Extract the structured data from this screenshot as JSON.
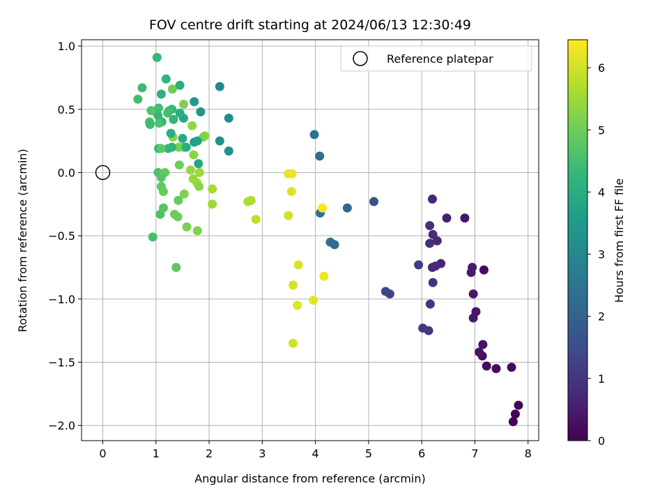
{
  "chart_data": {
    "type": "scatter",
    "title": "FOV centre drift starting at 2024/06/13 12:30:49",
    "xlabel": "Angular distance from reference (arcmin)",
    "ylabel": "Rotation from reference (arcmin)",
    "xlim": [
      -0.4,
      8.2
    ],
    "ylim": [
      -2.12,
      1.05
    ],
    "xticks": [
      0,
      1,
      2,
      3,
      4,
      5,
      6,
      7,
      8
    ],
    "yticks": [
      -2.0,
      -1.5,
      -1.0,
      -0.5,
      0.0,
      0.5,
      1.0
    ],
    "xtick_labels": [
      "0",
      "1",
      "2",
      "3",
      "4",
      "5",
      "6",
      "7",
      "8"
    ],
    "ytick_labels": [
      "−2.0",
      "−1.5",
      "−1.0",
      "−0.5",
      "0.0",
      "0.5",
      "1.0"
    ],
    "grid": true,
    "colormap": "viridis",
    "colorbar": {
      "label": "Hours from first FF file",
      "range": [
        0,
        6.45
      ],
      "ticks": [
        0,
        1,
        2,
        3,
        4,
        5,
        6
      ],
      "tick_labels": [
        "0",
        "1",
        "2",
        "3",
        "4",
        "5",
        "6"
      ]
    },
    "legend": {
      "position": "top-right",
      "label": "Reference platepar",
      "marker": "open-circle"
    },
    "reference_point": {
      "x": 0,
      "y": 0
    },
    "points": [
      {
        "x": 7.82,
        "y": -1.84,
        "c": 0.05
      },
      {
        "x": 7.76,
        "y": -1.91,
        "c": 0.08
      },
      {
        "x": 7.72,
        "y": -1.97,
        "c": 0.1
      },
      {
        "x": 7.69,
        "y": -1.54,
        "c": 0.15
      },
      {
        "x": 7.4,
        "y": -1.55,
        "c": 0.2
      },
      {
        "x": 7.22,
        "y": -1.53,
        "c": 0.25
      },
      {
        "x": 7.14,
        "y": -1.45,
        "c": 0.3
      },
      {
        "x": 7.15,
        "y": -1.36,
        "c": 0.33
      },
      {
        "x": 7.08,
        "y": -1.42,
        "c": 0.36
      },
      {
        "x": 7.02,
        "y": -1.1,
        "c": 0.4
      },
      {
        "x": 6.97,
        "y": -1.15,
        "c": 0.43
      },
      {
        "x": 6.97,
        "y": -0.96,
        "c": 0.46
      },
      {
        "x": 6.95,
        "y": -0.75,
        "c": 0.5
      },
      {
        "x": 6.93,
        "y": -0.79,
        "c": 0.52
      },
      {
        "x": 7.17,
        "y": -0.77,
        "c": 0.2
      },
      {
        "x": 6.81,
        "y": -0.36,
        "c": 0.4
      },
      {
        "x": 6.47,
        "y": -0.36,
        "c": 0.6
      },
      {
        "x": 6.36,
        "y": -0.72,
        "c": 0.65
      },
      {
        "x": 6.29,
        "y": -0.54,
        "c": 0.7
      },
      {
        "x": 6.26,
        "y": -0.74,
        "c": 0.72
      },
      {
        "x": 6.2,
        "y": -0.75,
        "c": 0.75
      },
      {
        "x": 6.21,
        "y": -0.49,
        "c": 0.8
      },
      {
        "x": 6.15,
        "y": -0.56,
        "c": 0.85
      },
      {
        "x": 6.15,
        "y": -0.42,
        "c": 0.9
      },
      {
        "x": 6.2,
        "y": -0.21,
        "c": 0.7
      },
      {
        "x": 6.21,
        "y": -0.87,
        "c": 0.95
      },
      {
        "x": 6.16,
        "y": -1.04,
        "c": 1.0
      },
      {
        "x": 6.02,
        "y": -1.23,
        "c": 1.05
      },
      {
        "x": 6.13,
        "y": -1.25,
        "c": 1.1
      },
      {
        "x": 5.94,
        "y": -0.73,
        "c": 1.15
      },
      {
        "x": 5.4,
        "y": -0.96,
        "c": 1.35
      },
      {
        "x": 5.32,
        "y": -0.94,
        "c": 1.4
      },
      {
        "x": 5.1,
        "y": -0.23,
        "c": 1.6
      },
      {
        "x": 4.6,
        "y": -0.28,
        "c": 2.1
      },
      {
        "x": 4.36,
        "y": -0.57,
        "c": 2.3
      },
      {
        "x": 4.28,
        "y": -0.55,
        "c": 2.35
      },
      {
        "x": 4.09,
        "y": -0.32,
        "c": 2.45
      },
      {
        "x": 4.08,
        "y": 0.13,
        "c": 2.3
      },
      {
        "x": 3.98,
        "y": 0.3,
        "c": 2.4
      },
      {
        "x": 4.13,
        "y": -0.28,
        "c": 6.4
      },
      {
        "x": 4.16,
        "y": -0.82,
        "c": 6.3
      },
      {
        "x": 3.96,
        "y": -1.01,
        "c": 6.2
      },
      {
        "x": 3.68,
        "y": -0.73,
        "c": 6.1
      },
      {
        "x": 3.66,
        "y": -1.05,
        "c": 6.15
      },
      {
        "x": 3.58,
        "y": -0.89,
        "c": 6.05
      },
      {
        "x": 3.58,
        "y": -1.35,
        "c": 6.0
      },
      {
        "x": 3.49,
        "y": -0.01,
        "c": 6.2
      },
      {
        "x": 3.56,
        "y": -0.01,
        "c": 6.25
      },
      {
        "x": 3.55,
        "y": -0.15,
        "c": 6.1
      },
      {
        "x": 3.49,
        "y": -0.34,
        "c": 6.0
      },
      {
        "x": 2.88,
        "y": -0.37,
        "c": 5.8
      },
      {
        "x": 2.79,
        "y": -0.22,
        "c": 5.7
      },
      {
        "x": 2.73,
        "y": -0.23,
        "c": 5.65
      },
      {
        "x": 2.06,
        "y": -0.13,
        "c": 5.6
      },
      {
        "x": 2.06,
        "y": -0.25,
        "c": 5.5
      },
      {
        "x": 2.37,
        "y": 0.17,
        "c": 3.2
      },
      {
        "x": 2.2,
        "y": 0.25,
        "c": 3.3
      },
      {
        "x": 2.37,
        "y": 0.43,
        "c": 3.1
      },
      {
        "x": 2.2,
        "y": 0.68,
        "c": 3.0
      },
      {
        "x": 1.92,
        "y": 0.29,
        "c": 5.3
      },
      {
        "x": 1.89,
        "y": 0.28,
        "c": 5.2
      },
      {
        "x": 1.84,
        "y": 0.48,
        "c": 3.4
      },
      {
        "x": 1.72,
        "y": 0.56,
        "c": 3.5
      },
      {
        "x": 1.68,
        "y": 0.37,
        "c": 5.4
      },
      {
        "x": 1.72,
        "y": 0.24,
        "c": 3.6
      },
      {
        "x": 1.78,
        "y": 0.25,
        "c": 3.7
      },
      {
        "x": 1.8,
        "y": 0.07,
        "c": 3.8
      },
      {
        "x": 1.82,
        "y": 0.0,
        "c": 5.5
      },
      {
        "x": 1.71,
        "y": 0.14,
        "c": 5.3
      },
      {
        "x": 1.65,
        "y": 0.02,
        "c": 5.4
      },
      {
        "x": 1.7,
        "y": -0.05,
        "c": 5.45
      },
      {
        "x": 1.77,
        "y": -0.08,
        "c": 5.5
      },
      {
        "x": 1.81,
        "y": -0.11,
        "c": 5.3
      },
      {
        "x": 1.78,
        "y": -0.46,
        "c": 5.2
      },
      {
        "x": 1.58,
        "y": -0.43,
        "c": 5.1
      },
      {
        "x": 1.53,
        "y": -0.17,
        "c": 5.2
      },
      {
        "x": 1.41,
        "y": -0.35,
        "c": 5.0
      },
      {
        "x": 1.35,
        "y": -0.33,
        "c": 5.0
      },
      {
        "x": 1.42,
        "y": -0.22,
        "c": 4.9
      },
      {
        "x": 1.38,
        "y": -0.75,
        "c": 4.8
      },
      {
        "x": 1.44,
        "y": 0.06,
        "c": 5.0
      },
      {
        "x": 1.52,
        "y": 0.2,
        "c": 4.9
      },
      {
        "x": 1.43,
        "y": 0.2,
        "c": 5.1
      },
      {
        "x": 1.32,
        "y": 0.28,
        "c": 5.3
      },
      {
        "x": 1.28,
        "y": 0.31,
        "c": 4.0
      },
      {
        "x": 1.3,
        "y": 0.2,
        "c": 4.1
      },
      {
        "x": 1.23,
        "y": 0.19,
        "c": 4.2
      },
      {
        "x": 1.5,
        "y": 0.27,
        "c": 3.9
      },
      {
        "x": 1.57,
        "y": 0.2,
        "c": 4.0
      },
      {
        "x": 1.52,
        "y": 0.43,
        "c": 3.8
      },
      {
        "x": 1.45,
        "y": 0.47,
        "c": 4.0
      },
      {
        "x": 1.52,
        "y": 0.54,
        "c": 5.2
      },
      {
        "x": 1.33,
        "y": 0.42,
        "c": 4.2
      },
      {
        "x": 1.3,
        "y": 0.5,
        "c": 4.3
      },
      {
        "x": 1.25,
        "y": 0.49,
        "c": 4.4
      },
      {
        "x": 1.22,
        "y": 0.47,
        "c": 4.5
      },
      {
        "x": 1.31,
        "y": 0.66,
        "c": 5.0
      },
      {
        "x": 1.45,
        "y": 0.69,
        "c": 4.0
      },
      {
        "x": 1.19,
        "y": 0.74,
        "c": 4.2
      },
      {
        "x": 1.1,
        "y": 0.62,
        "c": 4.1
      },
      {
        "x": 1.02,
        "y": 0.91,
        "c": 4.3
      },
      {
        "x": 0.74,
        "y": 0.67,
        "c": 4.4
      },
      {
        "x": 0.66,
        "y": 0.58,
        "c": 4.5
      },
      {
        "x": 0.91,
        "y": 0.49,
        "c": 4.6
      },
      {
        "x": 0.99,
        "y": 0.48,
        "c": 4.7
      },
      {
        "x": 1.05,
        "y": 0.51,
        "c": 4.5
      },
      {
        "x": 1.04,
        "y": 0.45,
        "c": 4.3
      },
      {
        "x": 1.11,
        "y": 0.4,
        "c": 4.2
      },
      {
        "x": 1.06,
        "y": 0.39,
        "c": 4.6
      },
      {
        "x": 0.88,
        "y": 0.4,
        "c": 4.5
      },
      {
        "x": 0.89,
        "y": 0.38,
        "c": 4.4
      },
      {
        "x": 1.05,
        "y": 0.19,
        "c": 4.3
      },
      {
        "x": 1.1,
        "y": 0.19,
        "c": 4.8
      },
      {
        "x": 1.04,
        "y": 0.0,
        "c": 4.6
      },
      {
        "x": 1.17,
        "y": 0.0,
        "c": 4.9
      },
      {
        "x": 1.1,
        "y": -0.04,
        "c": 4.7
      },
      {
        "x": 1.1,
        "y": -0.11,
        "c": 4.8
      },
      {
        "x": 1.14,
        "y": -0.15,
        "c": 4.9
      },
      {
        "x": 1.14,
        "y": -0.28,
        "c": 4.7
      },
      {
        "x": 1.08,
        "y": -0.33,
        "c": 4.6
      },
      {
        "x": 0.94,
        "y": -0.51,
        "c": 4.5
      }
    ]
  }
}
